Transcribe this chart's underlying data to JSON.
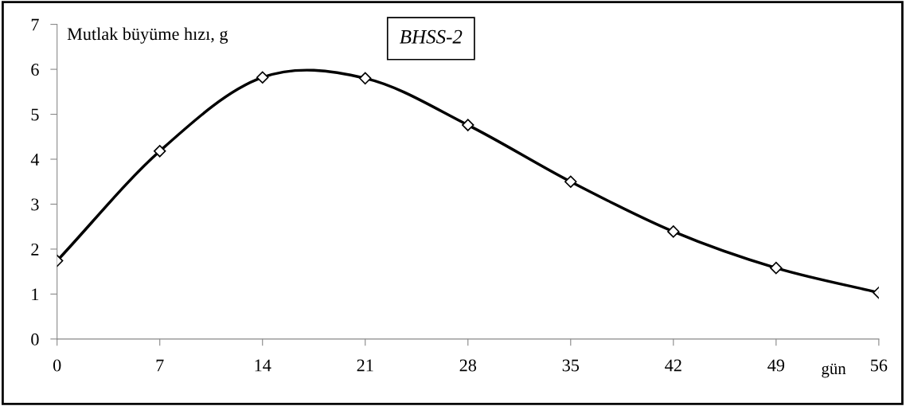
{
  "chart_data": {
    "type": "line",
    "ylabel": "Mutlak büyüme hızı, g",
    "xlabel": "gün",
    "annotations": [
      "BHSS-2"
    ],
    "x": [
      0,
      7,
      14,
      21,
      28,
      35,
      42,
      49,
      56
    ],
    "series": [
      {
        "color": "#000000",
        "values": [
          1.74,
          4.18,
          5.82,
          5.8,
          4.76,
          3.5,
          2.39,
          1.58,
          1.03
        ]
      }
    ],
    "xlim": [
      0,
      56
    ],
    "xticks": [
      0,
      7,
      14,
      21,
      28,
      35,
      42,
      49,
      56
    ],
    "ylim": [
      0,
      7
    ],
    "yticks": [
      0,
      1,
      2,
      3,
      4,
      5,
      6,
      7
    ],
    "grid": false,
    "legend": false,
    "marker": "diamond",
    "line_style": "solid"
  }
}
